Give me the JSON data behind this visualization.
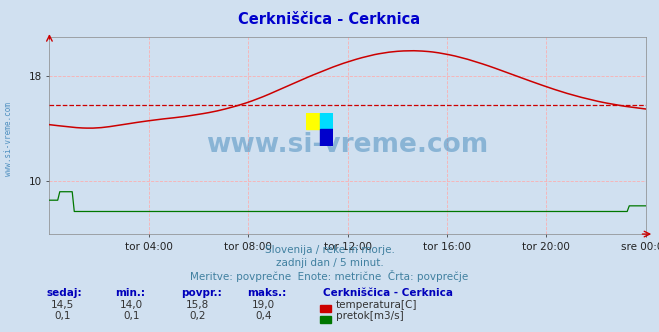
{
  "title": "Cerkniščica - Cerknica",
  "title_color": "#0000cc",
  "bg_color": "#d0e0f0",
  "plot_bg_color": "#d0e0f0",
  "grid_color": "#ffaaaa",
  "x_labels": [
    "tor 04:00",
    "tor 08:00",
    "tor 12:00",
    "tor 16:00",
    "tor 20:00",
    "sre 00:00"
  ],
  "x_ticks": [
    48,
    96,
    144,
    192,
    240,
    288
  ],
  "x_total": 288,
  "ylim_temp": [
    6.0,
    21.0
  ],
  "yticks_temp": [
    10,
    18
  ],
  "avg_temp": 15.8,
  "temp_color": "#cc0000",
  "flow_color": "#007700",
  "watermark_text": "www.si-vreme.com",
  "watermark_color": "#5090c0",
  "subtitle1": "Slovenija / reke in morje.",
  "subtitle2": "zadnji dan / 5 minut.",
  "subtitle3": "Meritve: povprečne  Enote: metrične  Črta: povprečje",
  "subtitle_color": "#4080a0",
  "legend_title": "Cerkniščica - Cerknica",
  "legend_color": "#0000bb",
  "label_sedaj": "sedaj:",
  "label_min": "min.:",
  "label_povpr": "povpr.:",
  "label_maks": "maks.:",
  "temp_sedaj": "14,5",
  "temp_min": "14,0",
  "temp_povpr": "15,8",
  "temp_maks": "19,0",
  "flow_sedaj": "0,1",
  "flow_min": "0,1",
  "flow_povpr": "0,2",
  "flow_maks": "0,4",
  "temp_label": "temperatura[C]",
  "flow_label": "pretok[m3/s]",
  "left_label": "www.si-vreme.com",
  "left_label_color": "#5090c0",
  "logo_yellow": "#ffff00",
  "logo_cyan": "#00ddff",
  "logo_blue": "#0000cc"
}
